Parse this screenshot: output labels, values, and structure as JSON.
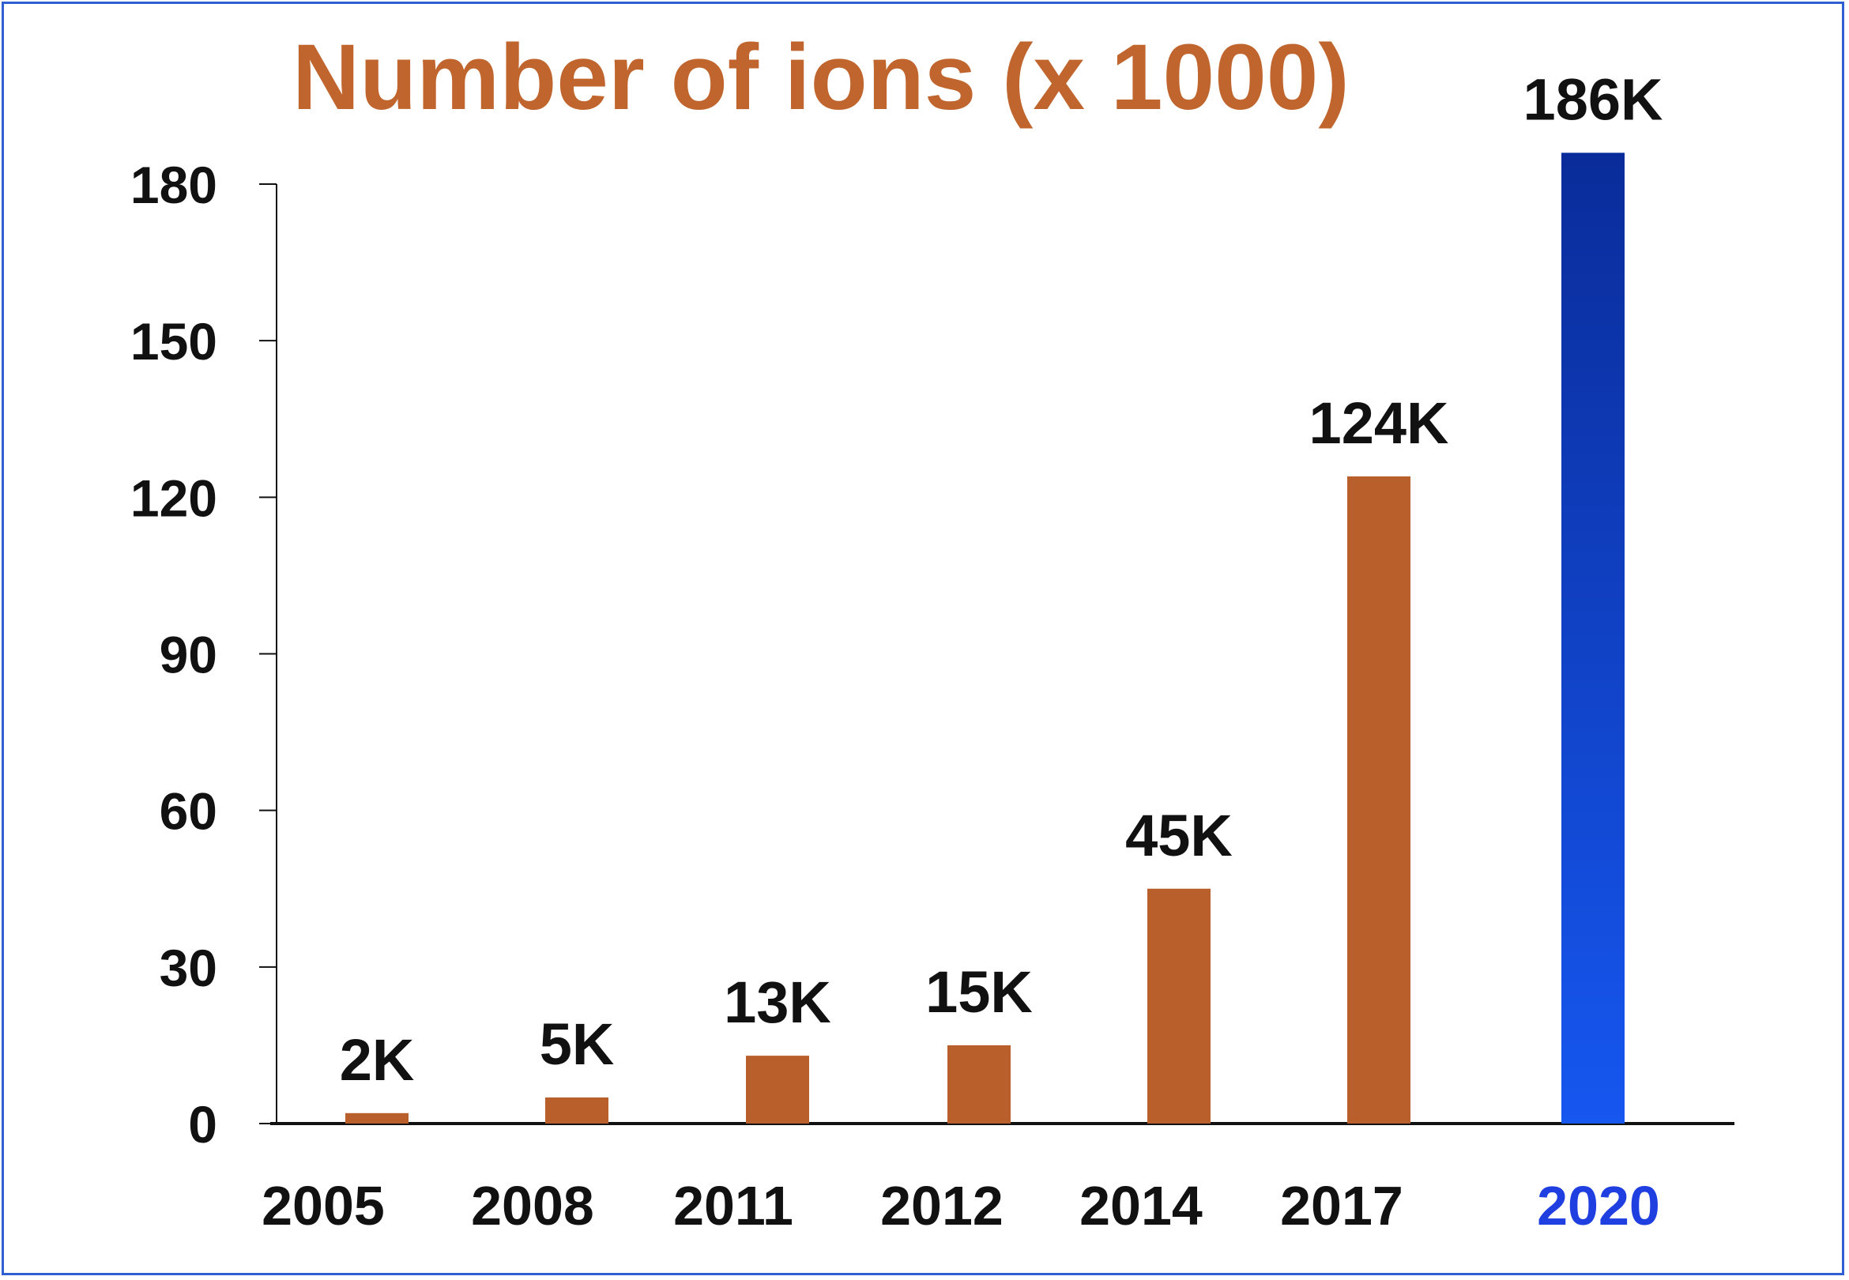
{
  "colors": {
    "bar": "#b85f2b",
    "highlight_bar_top": "#0a2c9a",
    "highlight_bar_bottom": "#1657f0",
    "title": "#c0652d",
    "highlight_label": "#1f3fe0",
    "axis": "#111111",
    "border": "#2f5fd0"
  },
  "chart_data": {
    "type": "bar",
    "title": "Number of ions (x 1000)",
    "categories": [
      "2005",
      "2008",
      "2011",
      "2012",
      "2014",
      "2017",
      "2020"
    ],
    "values": [
      2,
      5,
      13,
      15,
      45,
      124,
      186
    ],
    "data_labels": [
      "2K",
      "5K",
      "13K",
      "15K",
      "45K",
      "124K",
      "186K"
    ],
    "highlighted_category": "2020",
    "yticks": [
      "0",
      "30",
      "60",
      "90",
      "120",
      "150",
      "180"
    ],
    "ylim": [
      0,
      180
    ],
    "xlabel": "",
    "ylabel": "",
    "grid": false,
    "legend": "none"
  }
}
